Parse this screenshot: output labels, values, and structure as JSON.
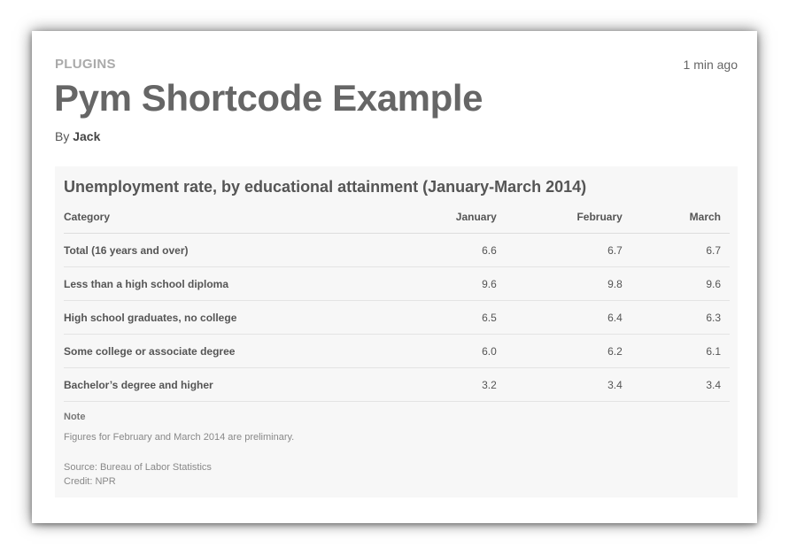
{
  "post": {
    "category": "PLUGINS",
    "time_ago": "1 min ago",
    "title": "Pym Shortcode Example",
    "by_label": "By",
    "author": "Jack"
  },
  "embed": {
    "title": "Unemployment rate, by educational attainment (January-March 2014)",
    "columns": [
      "Category",
      "January",
      "February",
      "March"
    ],
    "rows": [
      {
        "category": "Total (16 years and over)",
        "january": "6.6",
        "february": "6.7",
        "march": "6.7"
      },
      {
        "category": "Less than a high school diploma",
        "january": "9.6",
        "february": "9.8",
        "march": "9.6"
      },
      {
        "category": "High school graduates, no college",
        "january": "6.5",
        "february": "6.4",
        "march": "6.3"
      },
      {
        "category": "Some college or associate degree",
        "january": "6.0",
        "february": "6.2",
        "march": "6.1"
      },
      {
        "category": "Bachelor’s degree and higher",
        "january": "3.2",
        "february": "3.4",
        "march": "3.4"
      }
    ],
    "note_label": "Note",
    "note_text": "Figures for February and March 2014 are preliminary.",
    "source": "Source: Bureau of Labor Statistics",
    "credit": "Credit: NPR"
  }
}
